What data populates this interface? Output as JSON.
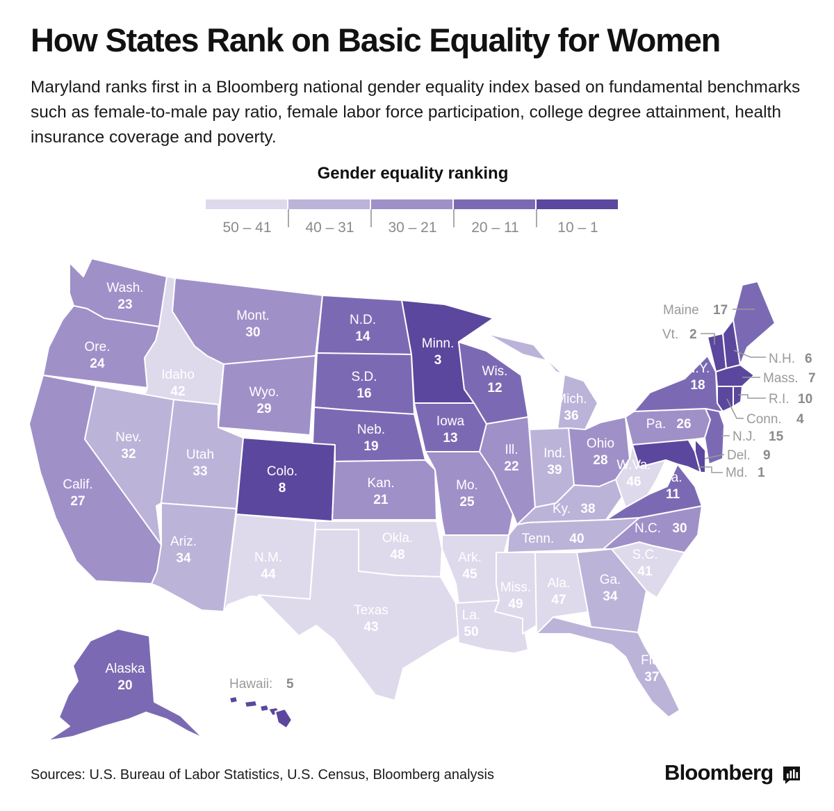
{
  "title": "How States Rank on Basic Equality for Women",
  "subtitle": "Maryland ranks first in a Bloomberg national gender equality index based on fundamental benchmarks such as female-to-male pay ratio, female labor force participation, college degree attainment, health insurance coverage and poverty.",
  "legend": {
    "title": "Gender equality ranking",
    "bins": [
      {
        "label": "50 – 41",
        "color": "#dedaec"
      },
      {
        "label": "40 – 31",
        "color": "#bcb3d9"
      },
      {
        "label": "30 – 21",
        "color": "#a090c8"
      },
      {
        "label": "20 – 11",
        "color": "#7b6ab3"
      },
      {
        "label": "10 – 1",
        "color": "#5b479d"
      }
    ]
  },
  "states": {
    "wa": {
      "name": "Wash.",
      "rank": "23"
    },
    "or": {
      "name": "Ore.",
      "rank": "24"
    },
    "ca": {
      "name": "Calif.",
      "rank": "27"
    },
    "id": {
      "name": "Idaho",
      "rank": "42"
    },
    "nv": {
      "name": "Nev.",
      "rank": "32"
    },
    "mt": {
      "name": "Mont.",
      "rank": "30"
    },
    "wy": {
      "name": "Wyo.",
      "rank": "29"
    },
    "ut": {
      "name": "Utah",
      "rank": "33"
    },
    "az": {
      "name": "Ariz.",
      "rank": "34"
    },
    "co": {
      "name": "Colo.",
      "rank": "8"
    },
    "nm": {
      "name": "N.M.",
      "rank": "44"
    },
    "nd": {
      "name": "N.D.",
      "rank": "14"
    },
    "sd": {
      "name": "S.D.",
      "rank": "16"
    },
    "ne": {
      "name": "Neb.",
      "rank": "19"
    },
    "ks": {
      "name": "Kan.",
      "rank": "21"
    },
    "ok": {
      "name": "Okla.",
      "rank": "48"
    },
    "tx": {
      "name": "Texas",
      "rank": "43"
    },
    "mn": {
      "name": "Minn.",
      "rank": "3"
    },
    "ia": {
      "name": "Iowa",
      "rank": "13"
    },
    "mo": {
      "name": "Mo.",
      "rank": "25"
    },
    "ar": {
      "name": "Ark.",
      "rank": "45"
    },
    "la": {
      "name": "La.",
      "rank": "50"
    },
    "wi": {
      "name": "Wis.",
      "rank": "12"
    },
    "il": {
      "name": "Ill.",
      "rank": "22"
    },
    "mi": {
      "name": "Mich.",
      "rank": "36"
    },
    "in": {
      "name": "Ind.",
      "rank": "39"
    },
    "oh": {
      "name": "Ohio",
      "rank": "28"
    },
    "ky": {
      "name": "Ky.",
      "rank": "38"
    },
    "tn": {
      "name": "Tenn.",
      "rank": "40"
    },
    "ms": {
      "name": "Miss.",
      "rank": "49"
    },
    "al": {
      "name": "Ala.",
      "rank": "47"
    },
    "ga": {
      "name": "Ga.",
      "rank": "34"
    },
    "fl": {
      "name": "Fla.",
      "rank": "37"
    },
    "sc": {
      "name": "S.C.",
      "rank": "41"
    },
    "nc": {
      "name": "N.C.",
      "rank": "30"
    },
    "va": {
      "name": "Va.",
      "rank": "11"
    },
    "wv": {
      "name": "W.Va.",
      "rank": "46"
    },
    "pa": {
      "name": "Pa.",
      "rank": "26"
    },
    "ny": {
      "name": "N.Y.",
      "rank": "18"
    },
    "me": {
      "name": "Maine",
      "rank": "17"
    },
    "vt": {
      "name": "Vt.",
      "rank": "2"
    },
    "nh": {
      "name": "N.H.",
      "rank": "6"
    },
    "ma": {
      "name": "Mass.",
      "rank": "7"
    },
    "ri": {
      "name": "R.I.",
      "rank": "10"
    },
    "ct": {
      "name": "Conn.",
      "rank": "4"
    },
    "nj": {
      "name": "N.J.",
      "rank": "15"
    },
    "de": {
      "name": "Del.",
      "rank": "9"
    },
    "md": {
      "name": "Md.",
      "rank": "1"
    },
    "ak": {
      "name": "Alaska",
      "rank": "20"
    },
    "hi": {
      "name": "Hawaii:",
      "rank": "5"
    }
  },
  "source": "Sources: U.S. Bureau of Labor Statistics, U.S. Census, Bloomberg analysis",
  "brand": "Bloomberg"
}
